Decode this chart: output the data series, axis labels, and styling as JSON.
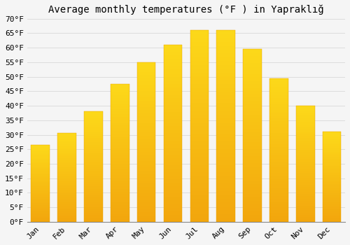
{
  "title": "Average monthly temperatures (°F ) in Yapraklığ",
  "months": [
    "Jan",
    "Feb",
    "Mar",
    "Apr",
    "May",
    "Jun",
    "Jul",
    "Aug",
    "Sep",
    "Oct",
    "Nov",
    "Dec"
  ],
  "values": [
    26.5,
    30.5,
    38.0,
    47.5,
    55.0,
    61.0,
    66.0,
    66.0,
    59.5,
    49.5,
    40.0,
    31.0
  ],
  "bar_color_top": "#FFC125",
  "bar_color_bottom": "#F5A623",
  "bar_edge_color": "#E8A000",
  "background_color": "#f5f5f5",
  "plot_bg_color": "#f5f5f5",
  "grid_color": "#dddddd",
  "ylim": [
    0,
    70
  ],
  "yticks": [
    0,
    5,
    10,
    15,
    20,
    25,
    30,
    35,
    40,
    45,
    50,
    55,
    60,
    65,
    70
  ],
  "ylabel_suffix": "°F",
  "title_fontsize": 10,
  "tick_fontsize": 8,
  "font_family": "monospace",
  "bar_width": 0.7,
  "figsize": [
    5.0,
    3.5
  ],
  "dpi": 100
}
